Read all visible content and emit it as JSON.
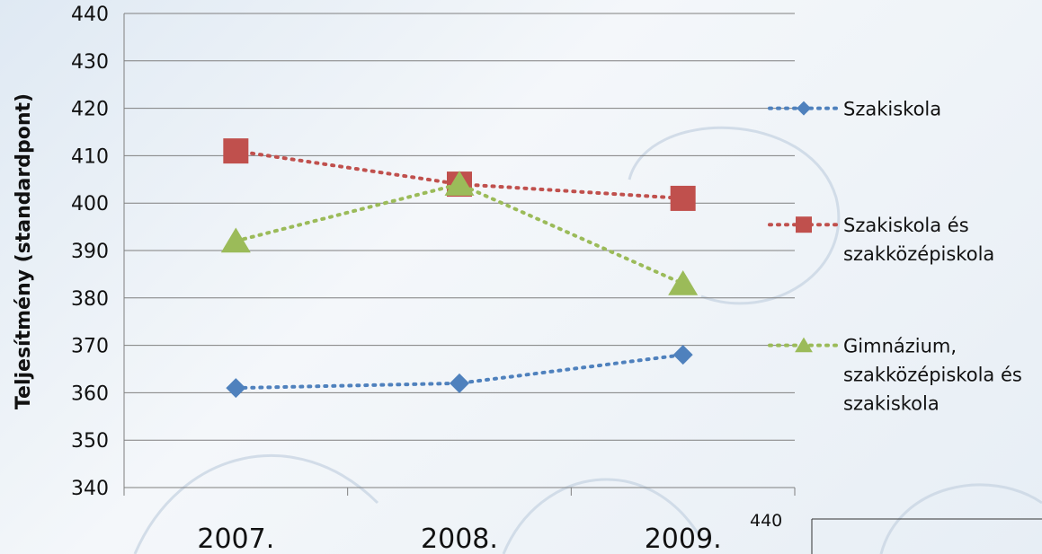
{
  "chart_data": {
    "type": "line",
    "ylabel": "Teljesítmény (standardpont)",
    "categories": [
      "2007.",
      "2008.",
      "2009."
    ],
    "ylim": [
      340,
      440
    ],
    "ystep": 10,
    "grid": true,
    "legend_position": "right",
    "series": [
      {
        "name": "Szakiskola",
        "values": [
          361,
          362,
          368
        ],
        "color": "#4f81bd",
        "marker": "diamond"
      },
      {
        "name": "Szakiskola és szakközépiskola",
        "values": [
          411,
          404,
          401
        ],
        "color": "#c0504d",
        "marker": "square"
      },
      {
        "name": "Gimnázium, szakközépiskola és szakiskola",
        "values": [
          392,
          404,
          383
        ],
        "color": "#9bbb59",
        "marker": "triangle"
      }
    ],
    "legend": [
      {
        "lines": [
          "Szakiskola"
        ]
      },
      {
        "lines": [
          "Szakiskola és",
          "szakközépiskola"
        ]
      },
      {
        "lines": [
          "Gimnázium,",
          "szakközépiskola és",
          "szakiskola"
        ]
      }
    ],
    "corner_label": "440"
  }
}
